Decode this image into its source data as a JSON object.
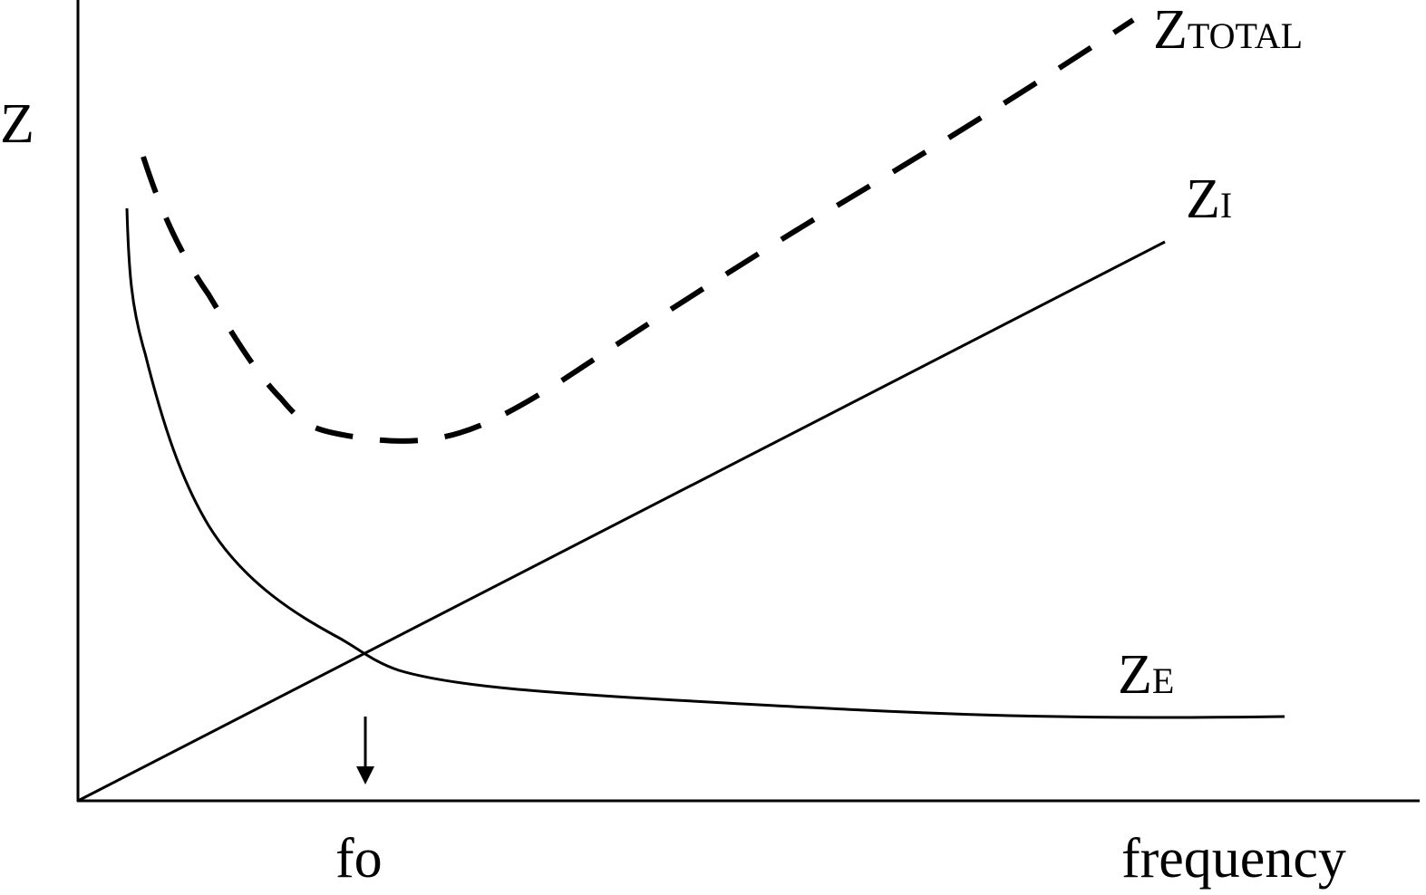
{
  "axes": {
    "y_label": "Z",
    "x_label": "frequency",
    "marker_label": "fo"
  },
  "curves": [
    {
      "label": "Z",
      "subscript": "TOTAL"
    },
    {
      "label": "Z",
      "subscript": "I"
    },
    {
      "label": "Z",
      "subscript": "E"
    }
  ]
}
